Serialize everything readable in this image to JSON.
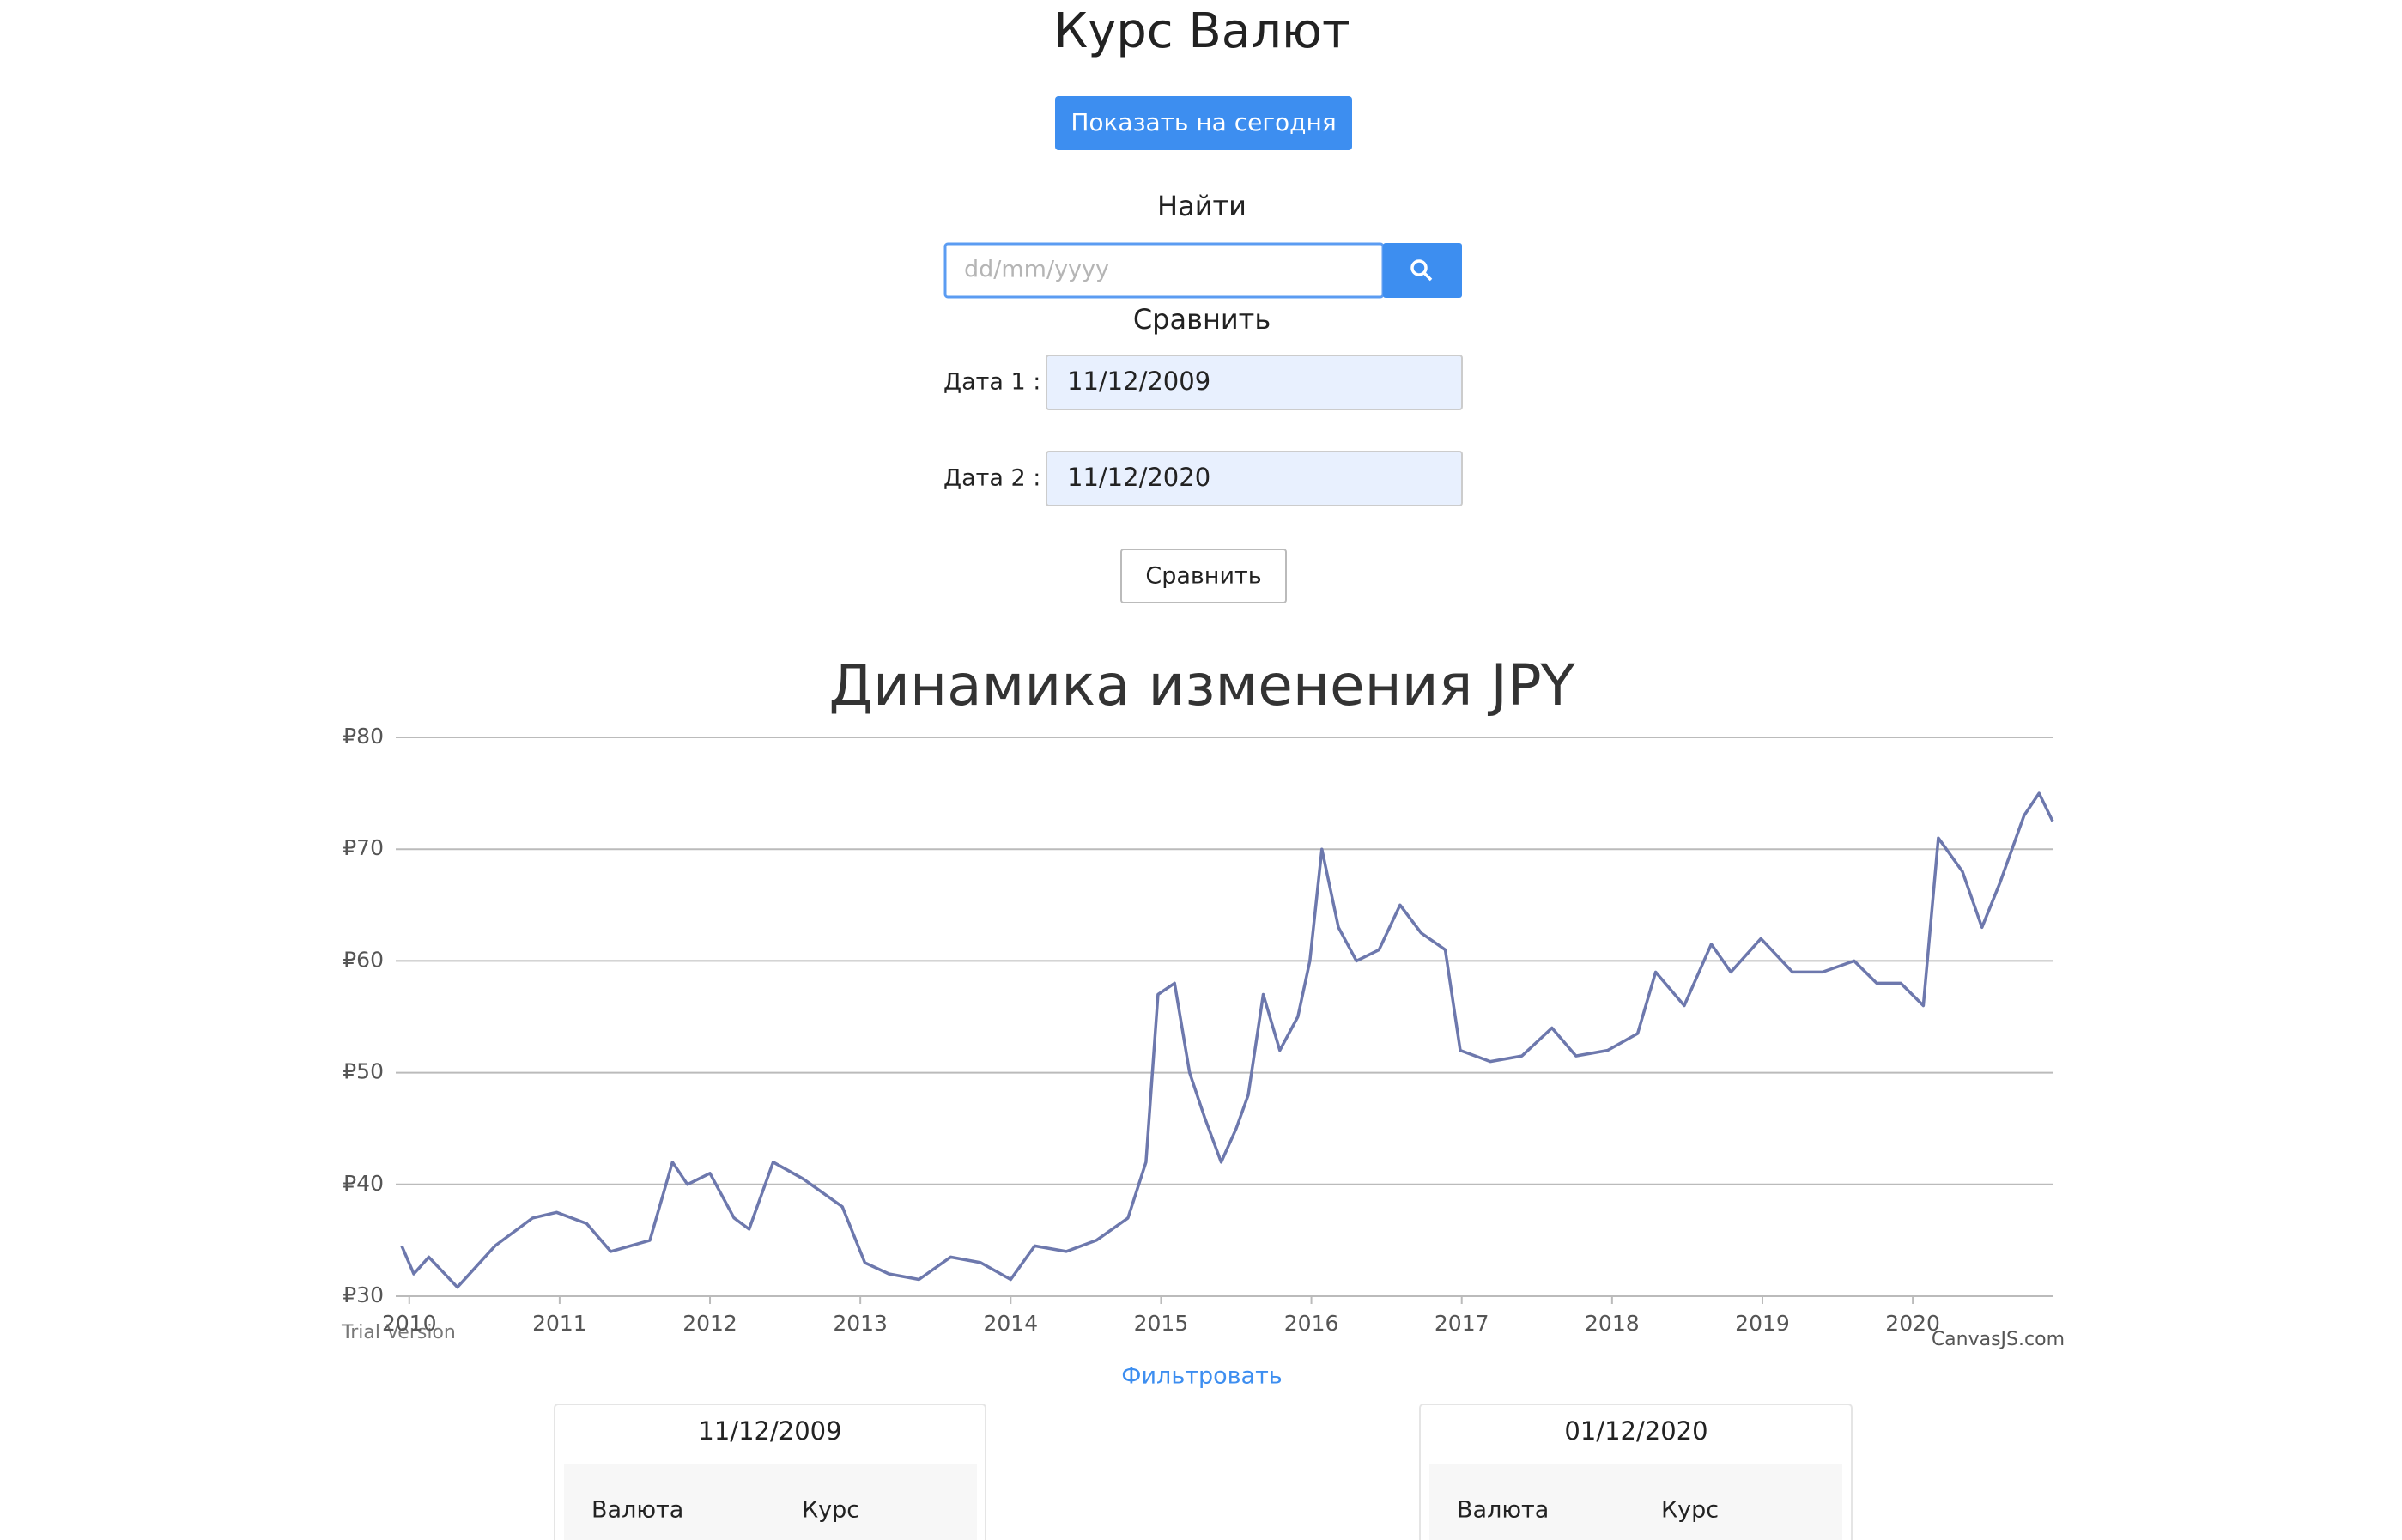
{
  "header": {
    "title": "Курс Валют",
    "today_button": "Показать на сегодня"
  },
  "search": {
    "label": "Найти",
    "placeholder": "dd/mm/yyyy"
  },
  "compare": {
    "label": "Сравнить",
    "date1_label": "Дата 1 :",
    "date1": "11/12/2009",
    "date2_label": "Дата 2 :",
    "date2": "11/12/2020",
    "button": "Сравнить"
  },
  "chart_data": {
    "type": "line",
    "title": "Динамика изменения JPY",
    "color": "#6d78ad",
    "grid": true,
    "x": [
      2009.95,
      2010.03,
      2010.13,
      2010.32,
      2010.57,
      2010.82,
      2010.98,
      2011.18,
      2011.34,
      2011.6,
      2011.75,
      2011.85,
      2012.0,
      2012.16,
      2012.26,
      2012.42,
      2012.62,
      2012.88,
      2013.03,
      2013.19,
      2013.39,
      2013.6,
      2013.8,
      2014.0,
      2014.16,
      2014.37,
      2014.57,
      2014.78,
      2014.9,
      2014.98,
      2015.09,
      2015.19,
      2015.29,
      2015.4,
      2015.5,
      2015.58,
      2015.68,
      2015.79,
      2015.91,
      2015.99,
      2016.07,
      2016.18,
      2016.3,
      2016.45,
      2016.59,
      2016.73,
      2016.89,
      2016.99,
      2017.19,
      2017.4,
      2017.6,
      2017.76,
      2017.97,
      2018.17,
      2018.29,
      2018.48,
      2018.66,
      2018.79,
      2018.99,
      2019.2,
      2019.4,
      2019.61,
      2019.76,
      2019.92,
      2020.07,
      2020.17,
      2020.33,
      2020.46,
      2020.58,
      2020.74,
      2020.84,
      2020.93
    ],
    "values": [
      34.5,
      32,
      33.5,
      30.8,
      34.5,
      37,
      37.5,
      36.5,
      34,
      35,
      42,
      40,
      41,
      37,
      36,
      42,
      40.5,
      38,
      33,
      32,
      31.5,
      33.5,
      33,
      31.5,
      34.5,
      34,
      35,
      37,
      42,
      57,
      58,
      50,
      46,
      42,
      45,
      48,
      57,
      52,
      55,
      60,
      70,
      63,
      60,
      61,
      65,
      62.5,
      61,
      52,
      51,
      51.5,
      54,
      51.5,
      52,
      53.5,
      59,
      56,
      61.5,
      59,
      62,
      59,
      59,
      60,
      58,
      58,
      56,
      71,
      68,
      63,
      67,
      73,
      75,
      72.5
    ],
    "xlim": [
      2009.91,
      2020.93
    ],
    "xticks": [
      2010,
      2011,
      2012,
      2013,
      2014,
      2015,
      2016,
      2017,
      2018,
      2019,
      2020
    ],
    "ylim": [
      30,
      80
    ],
    "yticks": [
      {
        "value": 30,
        "label": "₽30"
      },
      {
        "value": 40,
        "label": "₽40"
      },
      {
        "value": 50,
        "label": "₽50"
      },
      {
        "value": 60,
        "label": "₽60"
      },
      {
        "value": 70,
        "label": "₽70"
      },
      {
        "value": 80,
        "label": "₽80"
      }
    ],
    "watermark_left": "Trial Version",
    "watermark_right": "CanvasJS.com"
  },
  "filter_link": "Фильтровать",
  "cards": [
    {
      "date": "11/12/2009",
      "col1": "Валюта",
      "col2": "Курс"
    },
    {
      "date": "01/12/2020",
      "col1": "Валюта",
      "col2": "Курс"
    }
  ]
}
